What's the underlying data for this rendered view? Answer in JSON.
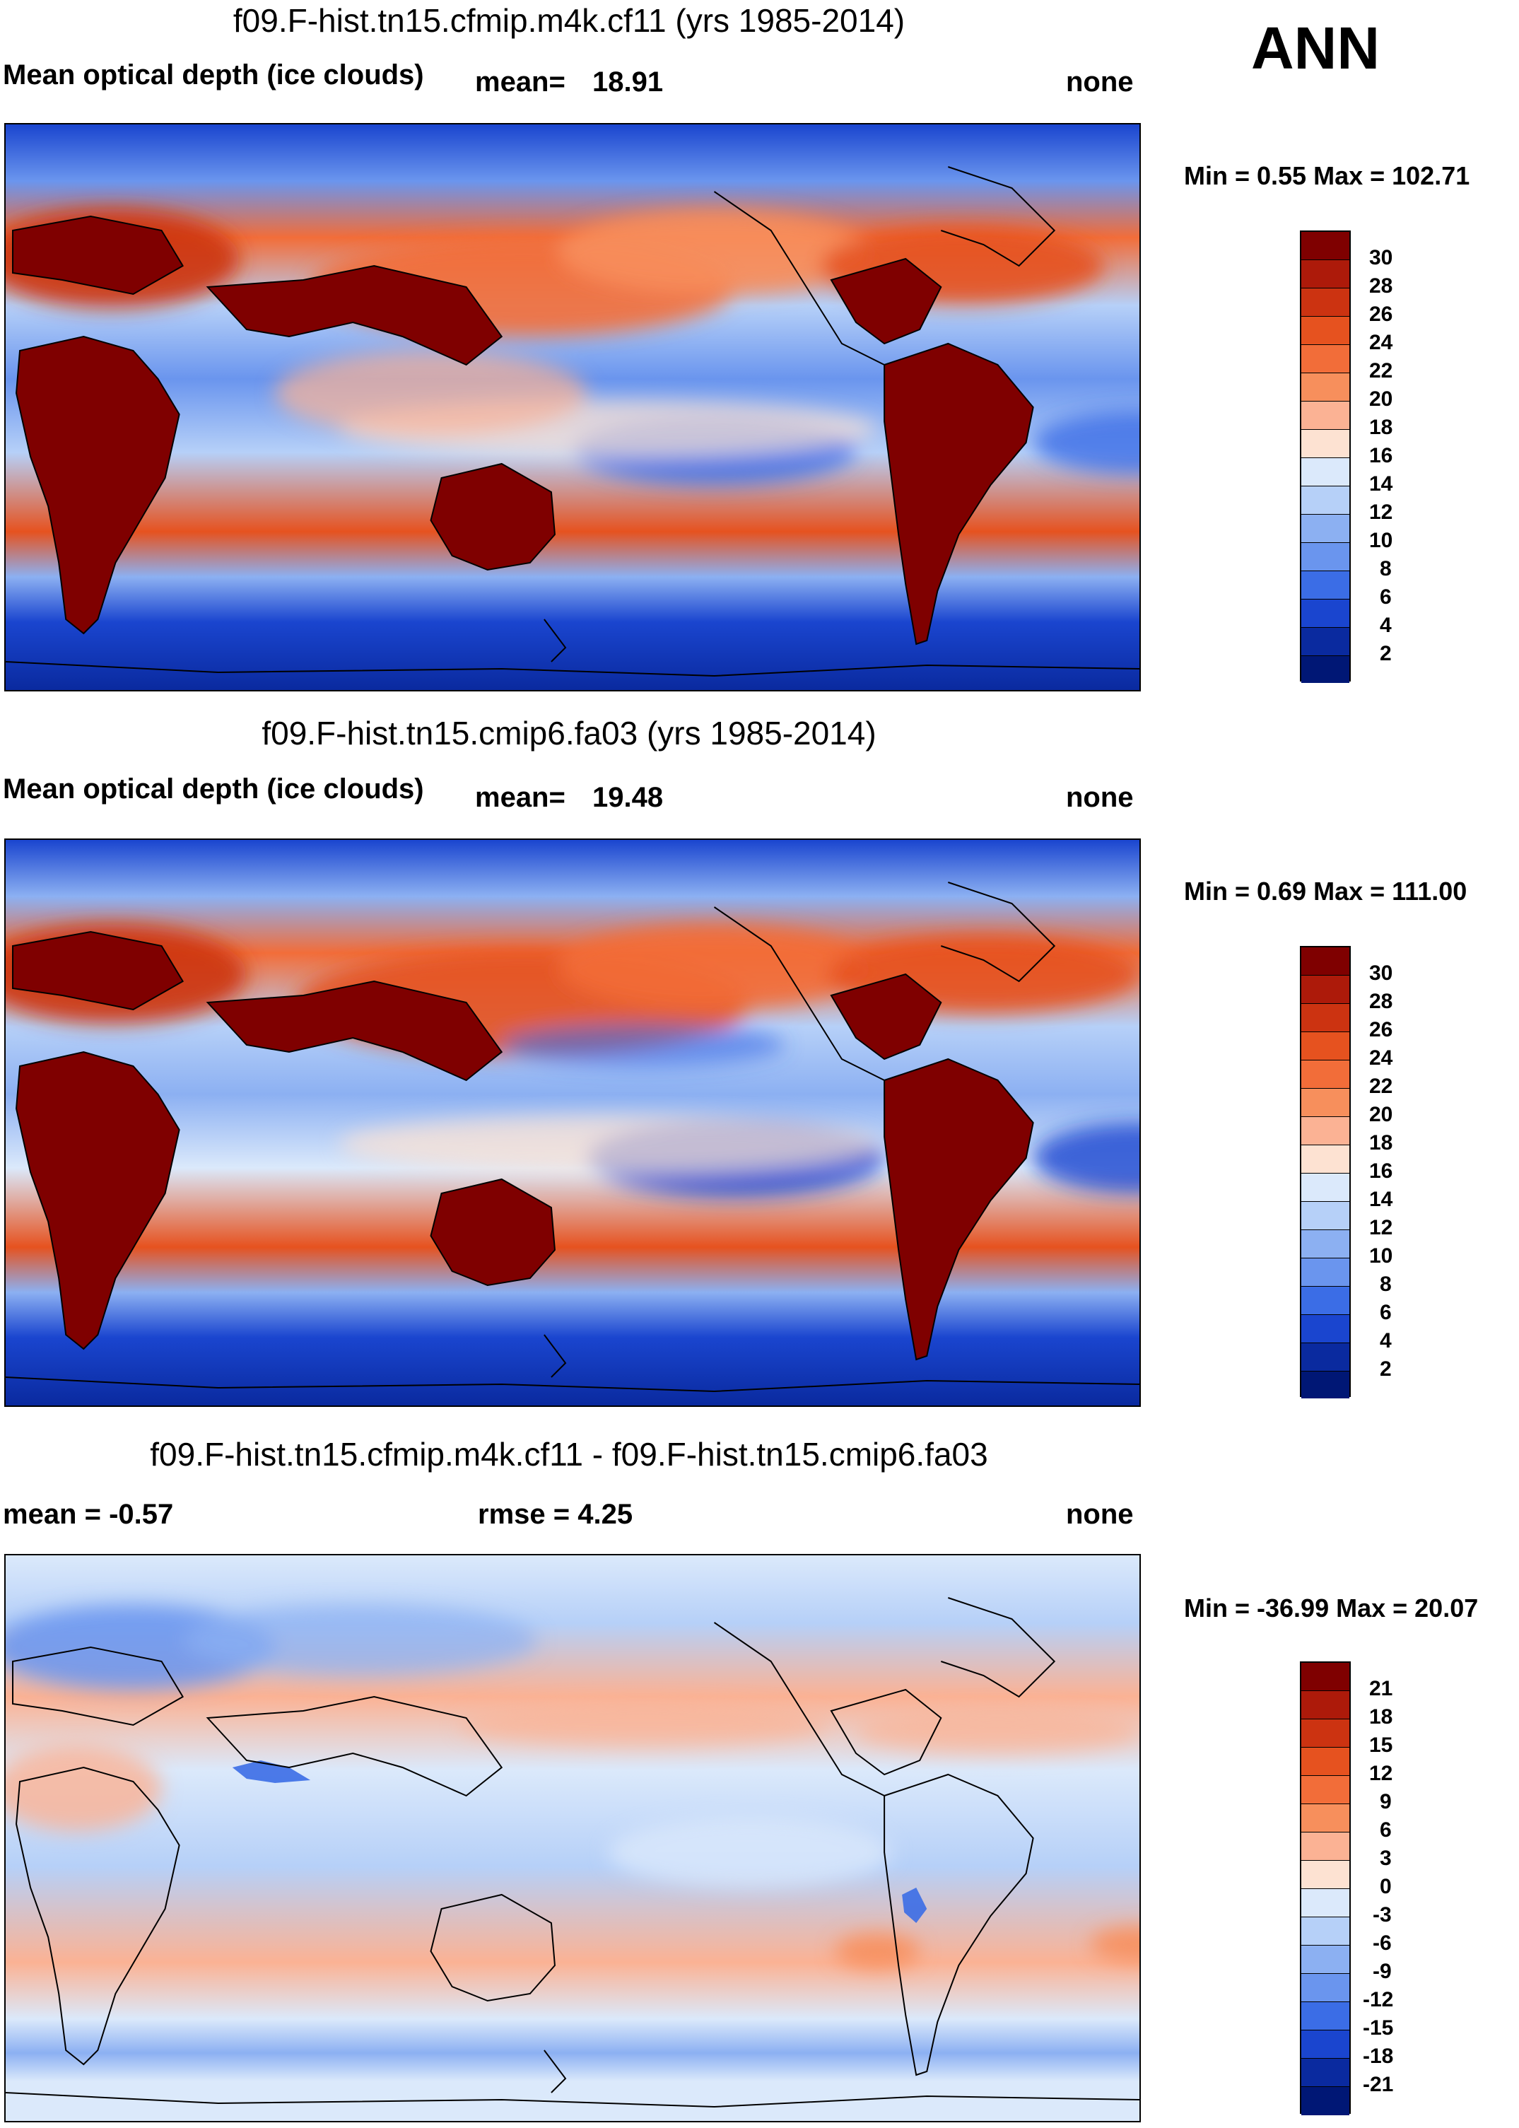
{
  "season": "ANN",
  "panels": [
    {
      "title": "f09.F-hist.tn15.cfmip.m4k.cf11 (yrs 1985-2014)",
      "left_text": "Mean optical depth (ice clouds)",
      "mean_label": "mean=",
      "mean_value": "18.91",
      "right_text": "none",
      "minmax": "Min =   0.55 Max = 102.71",
      "colorbar": {
        "labels": [
          "30",
          "28",
          "26",
          "24",
          "22",
          "20",
          "18",
          "16",
          "14",
          "12",
          "10",
          "8",
          "6",
          "4",
          "2"
        ],
        "colors": [
          "#7f0000",
          "#ad1a0a",
          "#cc3311",
          "#e6521f",
          "#f26d39",
          "#f78f5c",
          "#fbb294",
          "#fde2d2",
          "#dbe9fb",
          "#b6d0f8",
          "#8cb0f2",
          "#6a95ee",
          "#3b6de6",
          "#1a45cf",
          "#0a2a9f",
          "#001775"
        ]
      }
    },
    {
      "title": "f09.F-hist.tn15.cmip6.fa03 (yrs 1985-2014)",
      "left_text": "Mean optical depth (ice clouds)",
      "mean_label": "mean=",
      "mean_value": "19.48",
      "right_text": "none",
      "minmax": "Min =   0.69 Max = 111.00",
      "colorbar": {
        "labels": [
          "30",
          "28",
          "26",
          "24",
          "22",
          "20",
          "18",
          "16",
          "14",
          "12",
          "10",
          "8",
          "6",
          "4",
          "2"
        ],
        "colors": [
          "#7f0000",
          "#ad1a0a",
          "#cc3311",
          "#e6521f",
          "#f26d39",
          "#f78f5c",
          "#fbb294",
          "#fde2d2",
          "#dbe9fb",
          "#b6d0f8",
          "#8cb0f2",
          "#6a95ee",
          "#3b6de6",
          "#1a45cf",
          "#0a2a9f",
          "#001775"
        ]
      }
    },
    {
      "title": "f09.F-hist.tn15.cfmip.m4k.cf11 - f09.F-hist.tn15.cmip6.fa03",
      "mean_text": "mean =  -0.57",
      "rmse_text": "rmse =    4.25",
      "right_text": "none",
      "minmax": "Min = -36.99 Max =  20.07",
      "colorbar": {
        "labels": [
          "21",
          "18",
          "15",
          "12",
          "9",
          "6",
          "3",
          "0",
          "-3",
          "-6",
          "-9",
          "-12",
          "-15",
          "-18",
          "-21"
        ],
        "colors": [
          "#7f0000",
          "#ad1a0a",
          "#cc3311",
          "#e6521f",
          "#f26d39",
          "#f78f5c",
          "#fbb294",
          "#fde2d2",
          "#dbe9fb",
          "#b6d0f8",
          "#8cb0f2",
          "#6a95ee",
          "#3b6de6",
          "#1a45cf",
          "#0a2a9f",
          "#001775"
        ]
      }
    }
  ],
  "chart_data": [
    {
      "type": "heatmap",
      "title": "f09.F-hist.tn15.cfmip.m4k.cf11 (yrs 1985-2014)",
      "variable": "Mean optical depth (ice clouds)",
      "mean": 18.91,
      "units": "none",
      "min": 0.55,
      "max": 102.71,
      "levels": [
        2,
        4,
        6,
        8,
        10,
        12,
        14,
        16,
        18,
        20,
        22,
        24,
        26,
        28,
        30
      ]
    },
    {
      "type": "heatmap",
      "title": "f09.F-hist.tn15.cmip6.fa03 (yrs 1985-2014)",
      "variable": "Mean optical depth (ice clouds)",
      "mean": 19.48,
      "units": "none",
      "min": 0.69,
      "max": 111.0,
      "levels": [
        2,
        4,
        6,
        8,
        10,
        12,
        14,
        16,
        18,
        20,
        22,
        24,
        26,
        28,
        30
      ]
    },
    {
      "type": "heatmap",
      "title": "f09.F-hist.tn15.cfmip.m4k.cf11 - f09.F-hist.tn15.cmip6.fa03",
      "mean": -0.57,
      "rmse": 4.25,
      "units": "none",
      "min": -36.99,
      "max": 20.07,
      "levels": [
        -21,
        -18,
        -15,
        -12,
        -9,
        -6,
        -3,
        0,
        3,
        6,
        9,
        12,
        15,
        18,
        21
      ]
    }
  ]
}
